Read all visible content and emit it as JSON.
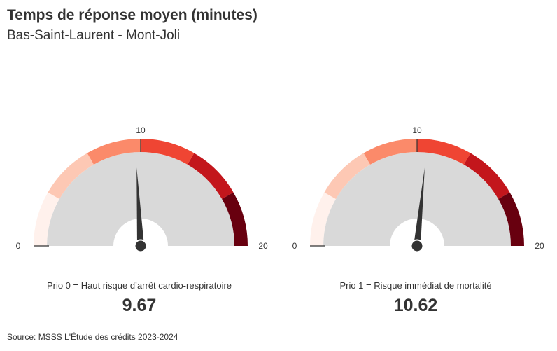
{
  "header": {
    "title": "Temps de réponse moyen (minutes)",
    "subtitle": "Bas-Saint-Laurent - Mont-Joli"
  },
  "footer": {
    "source": "Source: MSSS L'Étude des crédits 2023-2024"
  },
  "colors": {
    "band_fill": "#d9d9d9",
    "needle": "#333333",
    "segments": [
      "#fff1ec",
      "#fdc8b4",
      "#fb8a6a",
      "#ef4533",
      "#c3161c",
      "#68000f"
    ]
  },
  "chart_data": [
    {
      "type": "gauge",
      "label": "Prio 0 = Haut risque d’arrêt cardio-respiratoire",
      "value": 9.67,
      "value_display": "9.67",
      "min": 0,
      "max": 20,
      "ticks": [
        "0",
        "10",
        "20"
      ],
      "segment_breaks": [
        0,
        3.33,
        6.67,
        10,
        13.33,
        16.67,
        20
      ]
    },
    {
      "type": "gauge",
      "label": "Prio 1 = Risque immédiat de mortalité",
      "value": 10.62,
      "value_display": "10.62",
      "min": 0,
      "max": 20,
      "ticks": [
        "0",
        "10",
        "20"
      ],
      "segment_breaks": [
        0,
        3.33,
        6.67,
        10,
        13.33,
        16.67,
        20
      ]
    }
  ]
}
